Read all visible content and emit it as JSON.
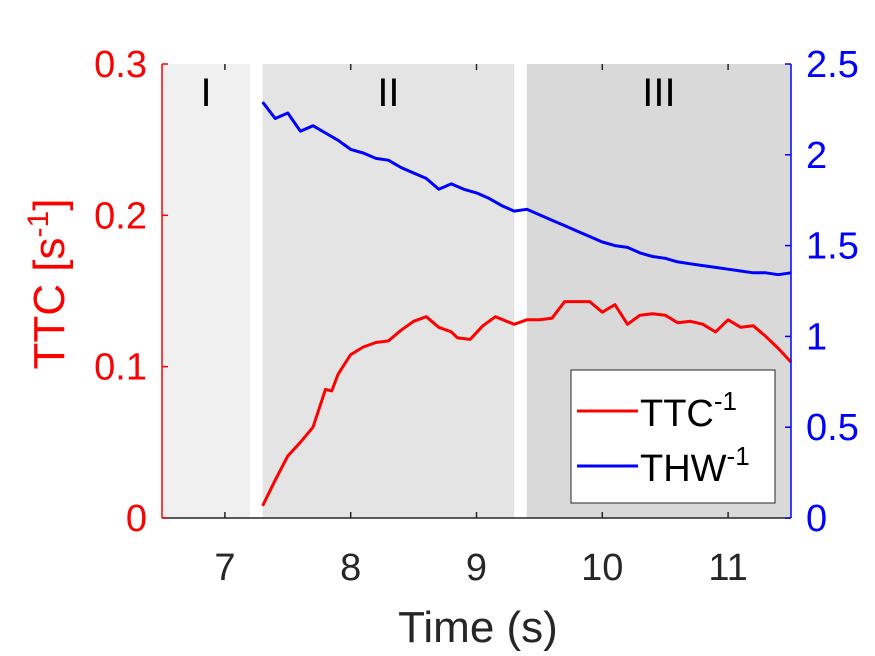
{
  "chart_data": {
    "type": "line",
    "title": "",
    "xlabel": "Time (s)",
    "ylabel_left": "TTC [s",
    "ylabel_left_sup": "-1",
    "ylabel_left_close": "]",
    "ylabel_right": "",
    "xlim": [
      6.5,
      11.5
    ],
    "ylim_left": [
      0,
      0.3
    ],
    "ylim_right": [
      0,
      2.5
    ],
    "x_ticks": [
      7,
      8,
      9,
      10,
      11
    ],
    "x_tick_labels": [
      "7",
      "8",
      "9",
      "10",
      "11"
    ],
    "y_left_ticks": [
      0,
      0.1,
      0.2,
      0.3
    ],
    "y_left_tick_labels": [
      "0",
      "0.1",
      "0.2",
      "0.3"
    ],
    "y_right_ticks": [
      0,
      0.5,
      1,
      1.5,
      2,
      2.5
    ],
    "y_right_tick_labels": [
      "0",
      "0.5",
      "1",
      "1.5",
      "2",
      "2.5"
    ],
    "grid": false,
    "legend_position": "bottom-right",
    "regions": [
      {
        "label": "I",
        "x_start": 6.5,
        "x_end": 7.2,
        "color": "#f0f0f0"
      },
      {
        "label": "II",
        "x_start": 7.3,
        "x_end": 9.3,
        "color": "#e4e4e4"
      },
      {
        "label": "III",
        "x_start": 9.4,
        "x_end": 11.5,
        "color": "#d9d9d9"
      }
    ],
    "series": [
      {
        "name": "TTC",
        "name_sup": "-1",
        "axis": "left",
        "color": "#ff0000",
        "x": [
          7.3,
          7.4,
          7.5,
          7.6,
          7.7,
          7.8,
          7.85,
          7.9,
          8.0,
          8.1,
          8.2,
          8.3,
          8.4,
          8.5,
          8.6,
          8.7,
          8.8,
          8.85,
          8.95,
          9.05,
          9.15,
          9.3,
          9.4,
          9.5,
          9.6,
          9.7,
          9.8,
          9.9,
          10.0,
          10.1,
          10.2,
          10.3,
          10.4,
          10.5,
          10.6,
          10.7,
          10.8,
          10.9,
          11.0,
          11.1,
          11.2,
          11.3,
          11.4,
          11.5
        ],
        "values": [
          0.008,
          0.025,
          0.041,
          0.05,
          0.06,
          0.085,
          0.084,
          0.095,
          0.108,
          0.113,
          0.116,
          0.117,
          0.124,
          0.13,
          0.133,
          0.126,
          0.123,
          0.119,
          0.118,
          0.127,
          0.133,
          0.128,
          0.131,
          0.131,
          0.132,
          0.143,
          0.143,
          0.143,
          0.136,
          0.141,
          0.128,
          0.134,
          0.135,
          0.134,
          0.129,
          0.13,
          0.128,
          0.123,
          0.131,
          0.126,
          0.127,
          0.12,
          0.112,
          0.103
        ]
      },
      {
        "name": "THW",
        "name_sup": "-1",
        "axis": "right",
        "color": "#0000ff",
        "x": [
          7.3,
          7.4,
          7.5,
          7.6,
          7.7,
          7.8,
          7.9,
          8.0,
          8.1,
          8.2,
          8.3,
          8.4,
          8.5,
          8.6,
          8.7,
          8.8,
          8.9,
          9.0,
          9.1,
          9.2,
          9.3,
          9.4,
          9.5,
          9.6,
          9.7,
          9.8,
          9.9,
          10.0,
          10.1,
          10.2,
          10.3,
          10.4,
          10.5,
          10.6,
          10.7,
          10.8,
          10.9,
          11.0,
          11.1,
          11.2,
          11.3,
          11.4,
          11.5
        ],
        "values": [
          2.29,
          2.2,
          2.23,
          2.13,
          2.16,
          2.12,
          2.08,
          2.03,
          2.01,
          1.98,
          1.97,
          1.93,
          1.9,
          1.87,
          1.81,
          1.84,
          1.81,
          1.79,
          1.76,
          1.72,
          1.69,
          1.7,
          1.67,
          1.64,
          1.61,
          1.58,
          1.55,
          1.52,
          1.5,
          1.49,
          1.46,
          1.44,
          1.43,
          1.41,
          1.4,
          1.39,
          1.38,
          1.37,
          1.36,
          1.35,
          1.35,
          1.34,
          1.35
        ]
      }
    ]
  }
}
